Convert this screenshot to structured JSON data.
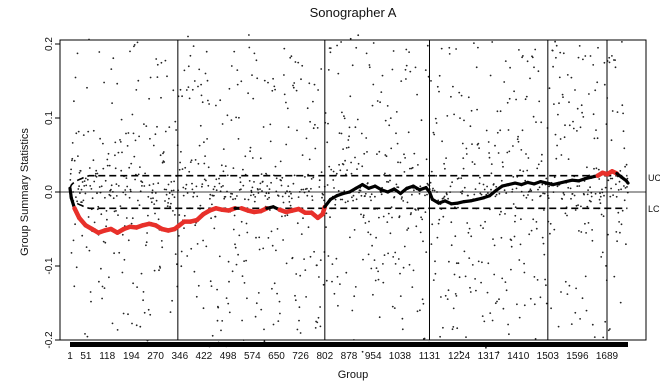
{
  "chart_data": {
    "type": "scatter",
    "title": "Sonographer A",
    "xlabel": "Group",
    "ylabel": "Group Summary Statistics",
    "xlim": [
      1,
      1755
    ],
    "ylim": [
      -0.22,
      0.22
    ],
    "x_ticks": [
      1,
      51,
      118,
      194,
      270,
      346,
      422,
      498,
      574,
      650,
      726,
      802,
      878,
      954,
      1038,
      1131,
      1224,
      1317,
      1410,
      1503,
      1596,
      1689
    ],
    "y_ticks": [
      -0.2,
      -0.1,
      0.0,
      0.1,
      0.2
    ],
    "y_tick_labels": [
      "-0.2",
      "-0.1",
      "0.0",
      "0.1",
      "0.2"
    ],
    "limit_labels": {
      "upper": "UC",
      "lower": "LC"
    },
    "control_limits": {
      "upper": 0.022,
      "lower": -0.022,
      "start_upper": 0.005,
      "start_lower": -0.005,
      "converge_group": 60
    },
    "vertical_lines_at": [
      340,
      802,
      1131,
      1503,
      1689
    ],
    "summary_statistic": [
      [
        1,
        0.005
      ],
      [
        5,
        -0.008
      ],
      [
        15,
        -0.022
      ],
      [
        30,
        -0.035
      ],
      [
        50,
        -0.045
      ],
      [
        70,
        -0.05
      ],
      [
        90,
        -0.055
      ],
      [
        110,
        -0.052
      ],
      [
        130,
        -0.05
      ],
      [
        150,
        -0.055
      ],
      [
        170,
        -0.05
      ],
      [
        190,
        -0.047
      ],
      [
        210,
        -0.048
      ],
      [
        230,
        -0.045
      ],
      [
        250,
        -0.043
      ],
      [
        270,
        -0.045
      ],
      [
        290,
        -0.05
      ],
      [
        310,
        -0.052
      ],
      [
        330,
        -0.05
      ],
      [
        345,
        -0.045
      ],
      [
        360,
        -0.04
      ],
      [
        380,
        -0.04
      ],
      [
        400,
        -0.038
      ],
      [
        420,
        -0.03
      ],
      [
        440,
        -0.025
      ],
      [
        460,
        -0.022
      ],
      [
        480,
        -0.024
      ],
      [
        500,
        -0.025
      ],
      [
        520,
        -0.022
      ],
      [
        540,
        -0.022
      ],
      [
        560,
        -0.025
      ],
      [
        580,
        -0.027
      ],
      [
        600,
        -0.026
      ],
      [
        620,
        -0.022
      ],
      [
        640,
        -0.02
      ],
      [
        660,
        -0.024
      ],
      [
        680,
        -0.027
      ],
      [
        700,
        -0.025
      ],
      [
        720,
        -0.023
      ],
      [
        740,
        -0.028
      ],
      [
        760,
        -0.028
      ],
      [
        780,
        -0.035
      ],
      [
        795,
        -0.03
      ],
      [
        802,
        -0.02
      ],
      [
        820,
        -0.01
      ],
      [
        840,
        -0.005
      ],
      [
        860,
        -0.002
      ],
      [
        880,
        0.0
      ],
      [
        900,
        0.005
      ],
      [
        920,
        0.01
      ],
      [
        940,
        0.005
      ],
      [
        960,
        0.008
      ],
      [
        980,
        0.003
      ],
      [
        1000,
        0.0
      ],
      [
        1020,
        0.004
      ],
      [
        1040,
        -0.002
      ],
      [
        1060,
        0.005
      ],
      [
        1080,
        0.008
      ],
      [
        1100,
        0.003
      ],
      [
        1120,
        0.006
      ],
      [
        1131,
        0.0
      ],
      [
        1140,
        -0.01
      ],
      [
        1160,
        -0.015
      ],
      [
        1180,
        -0.012
      ],
      [
        1200,
        -0.016
      ],
      [
        1220,
        -0.015
      ],
      [
        1240,
        -0.013
      ],
      [
        1260,
        -0.012
      ],
      [
        1280,
        -0.01
      ],
      [
        1300,
        -0.008
      ],
      [
        1320,
        -0.005
      ],
      [
        1340,
        0.002
      ],
      [
        1360,
        0.008
      ],
      [
        1380,
        0.01
      ],
      [
        1400,
        0.012
      ],
      [
        1420,
        0.01
      ],
      [
        1440,
        0.013
      ],
      [
        1460,
        0.011
      ],
      [
        1480,
        0.014
      ],
      [
        1500,
        0.012
      ],
      [
        1520,
        0.01
      ],
      [
        1540,
        0.012
      ],
      [
        1560,
        0.014
      ],
      [
        1580,
        0.016
      ],
      [
        1600,
        0.015
      ],
      [
        1620,
        0.018
      ],
      [
        1640,
        0.02
      ],
      [
        1660,
        0.022
      ],
      [
        1675,
        0.026
      ],
      [
        1690,
        0.024
      ],
      [
        1705,
        0.028
      ],
      [
        1720,
        0.025
      ],
      [
        1735,
        0.02
      ],
      [
        1750,
        0.015
      ],
      [
        1755,
        0.012
      ]
    ]
  }
}
